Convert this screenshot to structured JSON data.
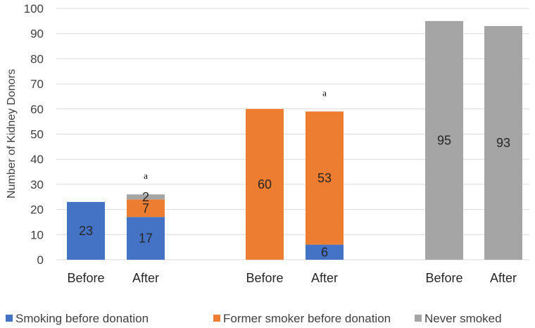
{
  "chart_data": {
    "type": "bar",
    "stacked": true,
    "title": "",
    "xlabel": "",
    "ylabel": "Number of Kidney Donors",
    "ylim": [
      0,
      100
    ],
    "yticks": [
      0,
      10,
      20,
      30,
      40,
      50,
      60,
      70,
      80,
      90,
      100
    ],
    "grid": true,
    "legend_position": "bottom",
    "categories": [
      "Before",
      "After",
      "Before",
      "After",
      "Before",
      "After"
    ],
    "series": [
      {
        "name": "Smoking before donation",
        "color": "#4472C4",
        "values": [
          23,
          17,
          0,
          6,
          0,
          0
        ]
      },
      {
        "name": "Former smoker before donation",
        "color": "#ED7D31",
        "values": [
          0,
          7,
          60,
          53,
          0,
          0
        ]
      },
      {
        "name": "Never smoked",
        "color": "#A5A5A5",
        "values": [
          0,
          2,
          0,
          0,
          95,
          93
        ]
      }
    ],
    "annotations": [
      {
        "category_index": 1,
        "text": "a"
      },
      {
        "category_index": 3,
        "text": "a"
      }
    ]
  }
}
